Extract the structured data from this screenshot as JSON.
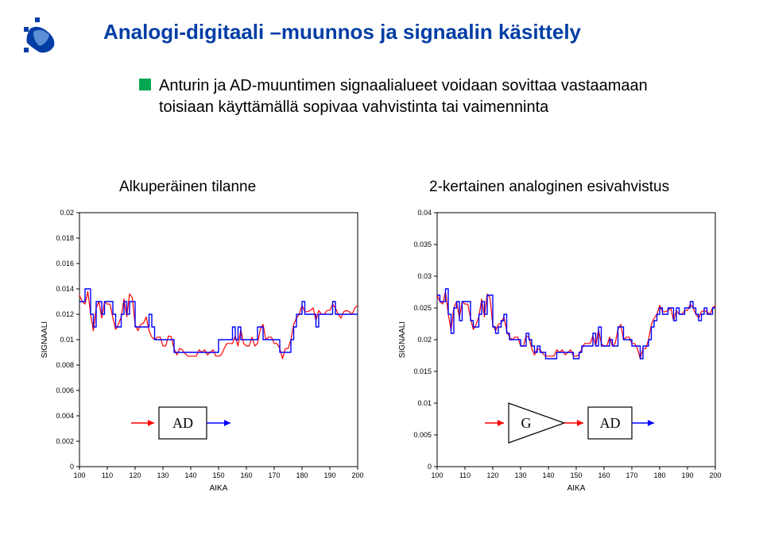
{
  "title": "Analogi-digitaali –muunnos ja signaalin käsittely",
  "bullet": "Anturin ja AD-muuntimen signaalialueet voidaan sovittaa vastaamaan toisiaan käyttämällä sopivaa vahvistinta tai vaimenninta",
  "caption_left": "Alkuperäinen tilanne",
  "caption_right": "2-kertainen analoginen esivahvistus",
  "bullet_color": "#00a651",
  "title_color": "#003da5",
  "chart_left": {
    "xlabel": "AIKA",
    "ylabel": "SIGNAALI",
    "xlim": [
      100,
      200
    ],
    "ylim": [
      0,
      0.02
    ],
    "xticks": [
      100,
      110,
      120,
      130,
      140,
      150,
      160,
      170,
      180,
      190,
      200
    ],
    "yticks": [
      0,
      0.002,
      0.004,
      0.006,
      0.008,
      0.01,
      0.012,
      0.014,
      0.016,
      0.018,
      0.02
    ],
    "ytick_labels": [
      "0",
      "0.002",
      "0.004",
      "0.006",
      "0.008",
      "0.01",
      "0.012",
      "0.014",
      "0.016",
      "0.018",
      "0.02"
    ],
    "background_color": "#ffffff",
    "box_color": "#000000",
    "signal_red_color": "#ff0000",
    "signal_blue_color": "#0000ff",
    "red": [
      [
        100,
        0.0135
      ],
      [
        101,
        0.013
      ],
      [
        102,
        0.0128
      ],
      [
        103,
        0.0138
      ],
      [
        104,
        0.012
      ],
      [
        105,
        0.0107
      ],
      [
        106,
        0.0125
      ],
      [
        107,
        0.013
      ],
      [
        108,
        0.0117
      ],
      [
        109,
        0.013
      ],
      [
        110,
        0.0128
      ],
      [
        111,
        0.0128
      ],
      [
        112,
        0.0117
      ],
      [
        113,
        0.0108
      ],
      [
        114,
        0.0112
      ],
      [
        115,
        0.0118
      ],
      [
        116,
        0.0132
      ],
      [
        117,
        0.0118
      ],
      [
        118,
        0.0136
      ],
      [
        119,
        0.0133
      ],
      [
        120,
        0.0112
      ],
      [
        121,
        0.0107
      ],
      [
        122,
        0.0112
      ],
      [
        123,
        0.0113
      ],
      [
        124,
        0.0118
      ],
      [
        125,
        0.0107
      ],
      [
        126,
        0.0102
      ],
      [
        127,
        0.01
      ],
      [
        128,
        0.0102
      ],
      [
        129,
        0.0102
      ],
      [
        130,
        0.0095
      ],
      [
        131,
        0.0095
      ],
      [
        132,
        0.0103
      ],
      [
        133,
        0.0102
      ],
      [
        134,
        0.0093
      ],
      [
        135,
        0.0088
      ],
      [
        136,
        0.0093
      ],
      [
        137,
        0.0092
      ],
      [
        138,
        0.0089
      ],
      [
        139,
        0.0087
      ],
      [
        140,
        0.0087
      ],
      [
        141,
        0.0087
      ],
      [
        142,
        0.0087
      ],
      [
        143,
        0.0092
      ],
      [
        144,
        0.009
      ],
      [
        145,
        0.0092
      ],
      [
        146,
        0.0088
      ],
      [
        147,
        0.009
      ],
      [
        148,
        0.0092
      ],
      [
        149,
        0.0087
      ],
      [
        150,
        0.0087
      ],
      [
        151,
        0.0088
      ],
      [
        152,
        0.0093
      ],
      [
        153,
        0.0097
      ],
      [
        154,
        0.0097
      ],
      [
        155,
        0.0097
      ],
      [
        156,
        0.0103
      ],
      [
        157,
        0.0095
      ],
      [
        158,
        0.0108
      ],
      [
        159,
        0.0097
      ],
      [
        160,
        0.0095
      ],
      [
        161,
        0.0095
      ],
      [
        162,
        0.0102
      ],
      [
        163,
        0.0095
      ],
      [
        164,
        0.0097
      ],
      [
        165,
        0.0108
      ],
      [
        166,
        0.0112
      ],
      [
        167,
        0.01
      ],
      [
        168,
        0.0102
      ],
      [
        169,
        0.0102
      ],
      [
        170,
        0.0097
      ],
      [
        171,
        0.0097
      ],
      [
        172,
        0.0093
      ],
      [
        173,
        0.0085
      ],
      [
        174,
        0.0093
      ],
      [
        175,
        0.0093
      ],
      [
        176,
        0.01
      ],
      [
        177,
        0.0112
      ],
      [
        178,
        0.0117
      ],
      [
        179,
        0.012
      ],
      [
        180,
        0.0127
      ],
      [
        181,
        0.0122
      ],
      [
        182,
        0.0122
      ],
      [
        183,
        0.0123
      ],
      [
        184,
        0.0125
      ],
      [
        185,
        0.0115
      ],
      [
        186,
        0.0123
      ],
      [
        187,
        0.012
      ],
      [
        188,
        0.012
      ],
      [
        189,
        0.0123
      ],
      [
        190,
        0.0123
      ],
      [
        191,
        0.0128
      ],
      [
        192,
        0.0125
      ],
      [
        193,
        0.012
      ],
      [
        194,
        0.0117
      ],
      [
        195,
        0.0122
      ],
      [
        196,
        0.0123
      ],
      [
        197,
        0.0122
      ],
      [
        198,
        0.012
      ],
      [
        199,
        0.0125
      ],
      [
        200,
        0.0127
      ]
    ],
    "blue": [
      [
        100,
        0.013
      ],
      [
        102,
        0.013
      ],
      [
        102,
        0.014
      ],
      [
        104,
        0.014
      ],
      [
        104,
        0.012
      ],
      [
        105,
        0.012
      ],
      [
        105,
        0.011
      ],
      [
        106,
        0.011
      ],
      [
        106,
        0.013
      ],
      [
        108,
        0.013
      ],
      [
        108,
        0.012
      ],
      [
        109,
        0.012
      ],
      [
        109,
        0.013
      ],
      [
        112,
        0.013
      ],
      [
        112,
        0.012
      ],
      [
        113,
        0.012
      ],
      [
        113,
        0.011
      ],
      [
        115,
        0.011
      ],
      [
        115,
        0.012
      ],
      [
        116,
        0.012
      ],
      [
        116,
        0.013
      ],
      [
        117,
        0.013
      ],
      [
        117,
        0.012
      ],
      [
        118,
        0.012
      ],
      [
        118,
        0.013
      ],
      [
        120,
        0.013
      ],
      [
        120,
        0.011
      ],
      [
        125,
        0.011
      ],
      [
        125,
        0.012
      ],
      [
        126,
        0.012
      ],
      [
        126,
        0.011
      ],
      [
        127,
        0.011
      ],
      [
        127,
        0.01
      ],
      [
        134,
        0.01
      ],
      [
        134,
        0.009
      ],
      [
        150,
        0.009
      ],
      [
        150,
        0.01
      ],
      [
        155,
        0.01
      ],
      [
        155,
        0.011
      ],
      [
        156,
        0.011
      ],
      [
        156,
        0.01
      ],
      [
        157,
        0.01
      ],
      [
        157,
        0.011
      ],
      [
        158,
        0.011
      ],
      [
        158,
        0.01
      ],
      [
        164,
        0.01
      ],
      [
        164,
        0.011
      ],
      [
        166,
        0.011
      ],
      [
        166,
        0.01
      ],
      [
        172,
        0.01
      ],
      [
        172,
        0.009
      ],
      [
        176,
        0.009
      ],
      [
        176,
        0.01
      ],
      [
        177,
        0.01
      ],
      [
        177,
        0.011
      ],
      [
        178,
        0.011
      ],
      [
        178,
        0.012
      ],
      [
        180,
        0.012
      ],
      [
        180,
        0.013
      ],
      [
        181,
        0.013
      ],
      [
        181,
        0.012
      ],
      [
        185,
        0.012
      ],
      [
        185,
        0.011
      ],
      [
        186,
        0.011
      ],
      [
        186,
        0.012
      ],
      [
        191,
        0.012
      ],
      [
        191,
        0.013
      ],
      [
        192,
        0.013
      ],
      [
        192,
        0.012
      ],
      [
        200,
        0.012
      ]
    ],
    "diagram": {
      "label": "AD"
    }
  },
  "chart_right": {
    "xlabel": "AIKA",
    "ylabel": "SIGNAALI",
    "xlim": [
      100,
      200
    ],
    "ylim": [
      0,
      0.04
    ],
    "xticks": [
      100,
      110,
      120,
      130,
      140,
      150,
      160,
      170,
      180,
      190,
      200
    ],
    "yticks": [
      0,
      0.005,
      0.01,
      0.015,
      0.02,
      0.025,
      0.03,
      0.035,
      0.04
    ],
    "ytick_labels": [
      "0",
      "0.005",
      "0.01",
      "0.015",
      "0.02",
      "0.025",
      "0.03",
      "0.035",
      "0.04"
    ],
    "background_color": "#ffffff",
    "box_color": "#000000",
    "signal_red_color": "#ff0000",
    "signal_blue_color": "#0000ff",
    "diagram": {
      "gain_label": "G",
      "label": "AD"
    }
  }
}
